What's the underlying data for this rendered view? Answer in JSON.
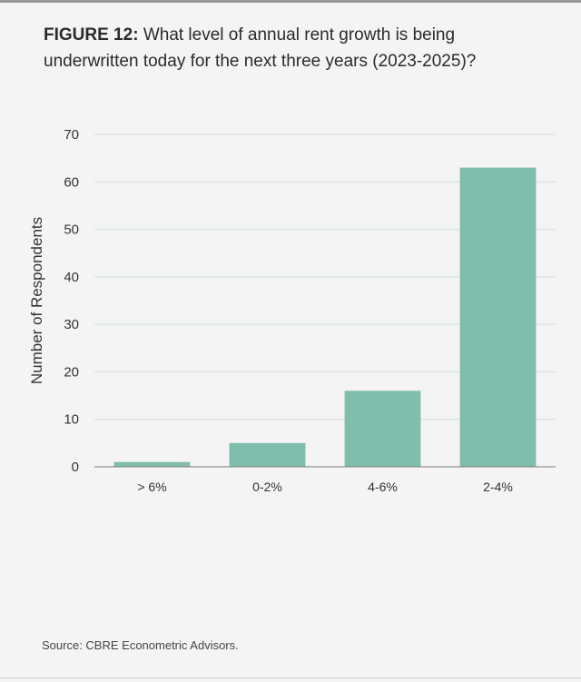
{
  "figure": {
    "label": "FIGURE 12:",
    "question": "What level of annual rent growth is being underwritten today for the next three years (2023-2025)?"
  },
  "source": "Source: CBRE Econometric Advisors.",
  "colors": {
    "bar": "#80bdad",
    "grid": "#cfe0da",
    "axis": "#7a7a7a",
    "text": "#333333"
  },
  "chart_data": {
    "type": "bar",
    "title": "FIGURE 12: What level of annual rent growth is being underwritten today for the next three years (2023-2025)?",
    "categories": [
      "> 6%",
      "0-2%",
      "4-6%",
      "2-4%"
    ],
    "values": [
      1,
      5,
      16,
      63
    ],
    "xlabel": "",
    "ylabel": "Number of Respondents",
    "ylim": [
      0,
      70
    ],
    "yticks": [
      0,
      10,
      20,
      30,
      40,
      50,
      60,
      70
    ],
    "grid": true,
    "legend": "none"
  }
}
